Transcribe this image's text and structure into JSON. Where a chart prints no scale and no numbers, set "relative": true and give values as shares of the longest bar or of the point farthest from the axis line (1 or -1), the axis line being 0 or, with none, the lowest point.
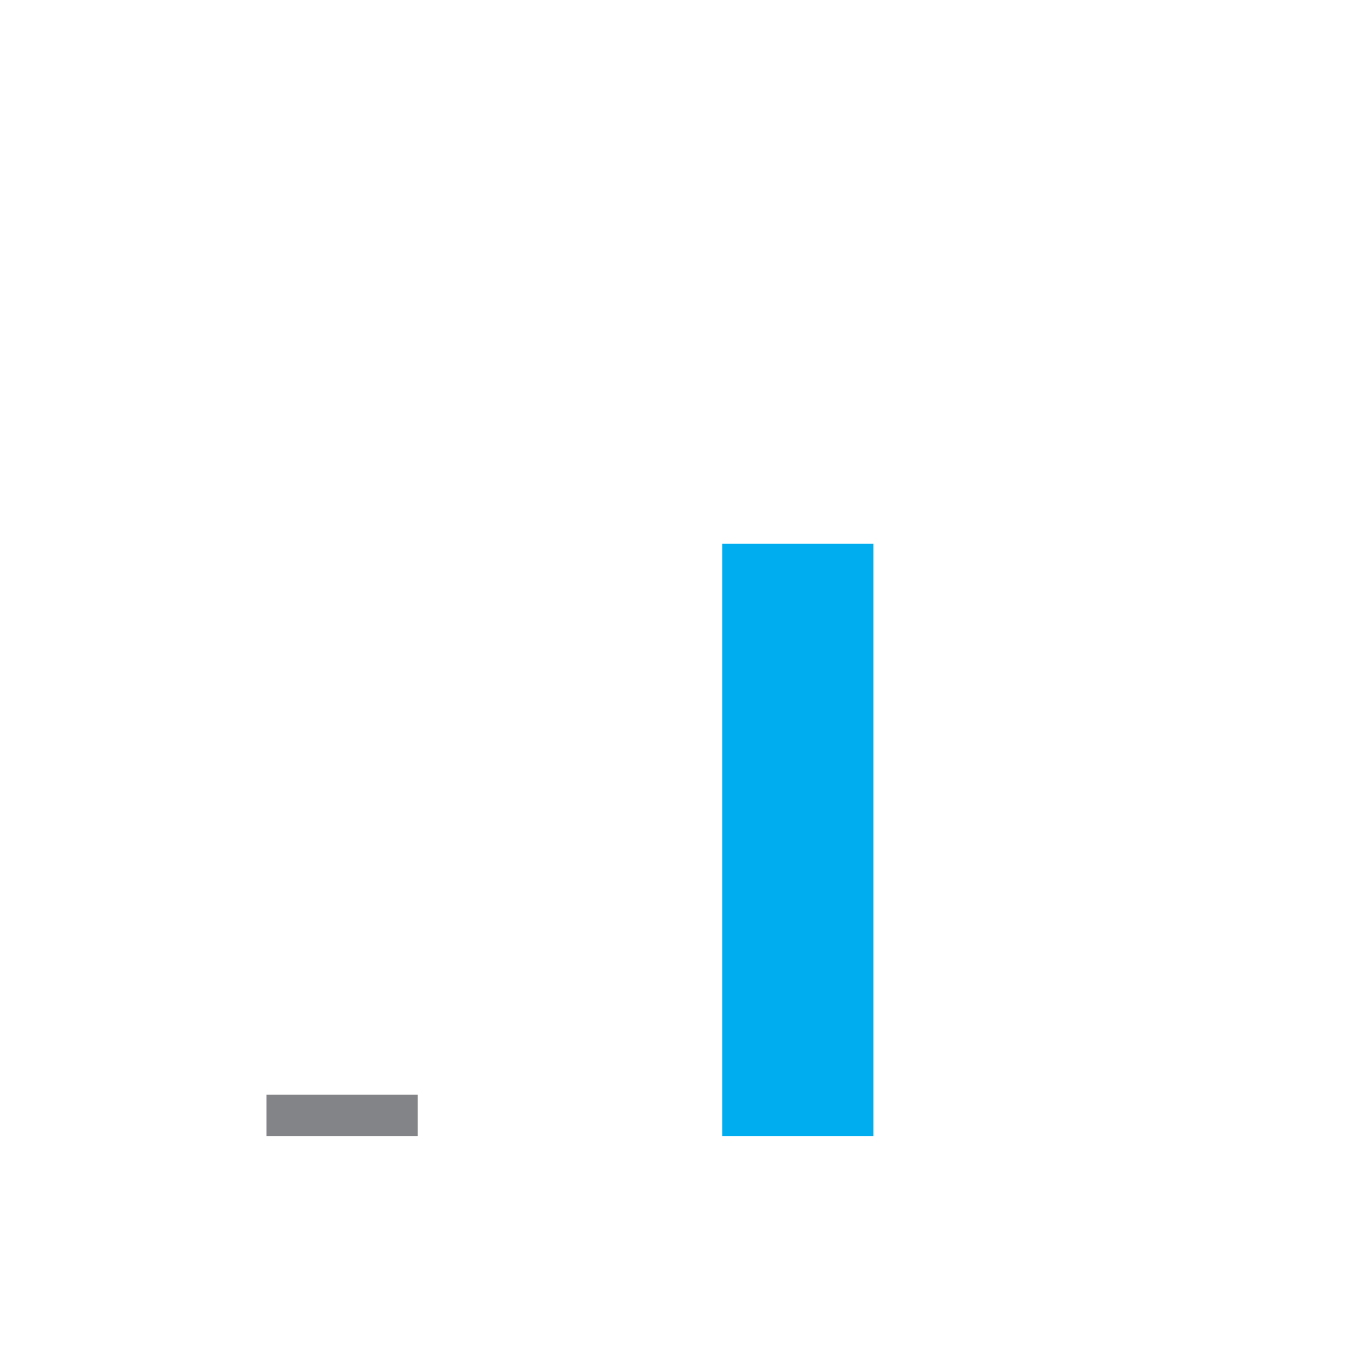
{
  "chart_data": {
    "type": "bar",
    "relative": true,
    "categories": [
      null,
      null
    ],
    "values": [
      0.07,
      1
    ],
    "colors": [
      "#838487",
      "#00aeef"
    ]
  }
}
